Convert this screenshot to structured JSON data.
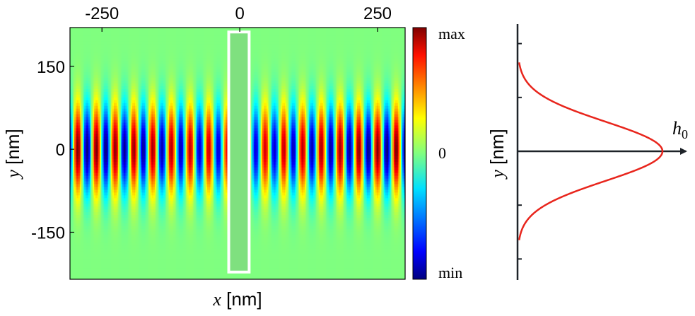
{
  "chart_data": [
    {
      "type": "heatmap",
      "xlabel_var": "x",
      "xlabel_unit": "[nm]",
      "ylabel_var": "y",
      "ylabel_unit": "[nm]",
      "xlim": [
        -308,
        300
      ],
      "ylim": [
        -235,
        220
      ],
      "x_ticks": [
        {
          "value": -250,
          "label": "-250"
        },
        {
          "value": 0,
          "label": "0"
        },
        {
          "value": 250,
          "label": "250"
        }
      ],
      "y_ticks": [
        {
          "value": 150,
          "label": "150"
        },
        {
          "value": 0,
          "label": "0"
        },
        {
          "value": -150,
          "label": "-150"
        }
      ],
      "colorbar": {
        "max_label": "max",
        "mid_label": "0",
        "min_label": "min",
        "colormap": "jet"
      },
      "field": {
        "description_free": true,
        "period_nm": 34,
        "gaussian_sigma_nm": 55,
        "phase_pi_at": [
          -243,
          237
        ],
        "amplitude_near_center_ratio": 0.8
      },
      "obstacle": {
        "x_range": [
          -20,
          17
        ],
        "y_range": [
          -222,
          212
        ],
        "fill_color": "#7fe07f",
        "outline_color": "#ffffff"
      }
    },
    {
      "type": "line",
      "xlabel_var": "h",
      "xlabel_sub": "0",
      "ylabel_var": "y",
      "ylabel_unit": "[nm]",
      "series": [
        {
          "curve": "gaussian",
          "sigma_nm": 55,
          "color": "#e8251c"
        }
      ],
      "ylim": [
        -235,
        235
      ],
      "y_tick_values": [
        -200,
        -100,
        0,
        100,
        200
      ],
      "axis_color": "#1e2329"
    }
  ]
}
